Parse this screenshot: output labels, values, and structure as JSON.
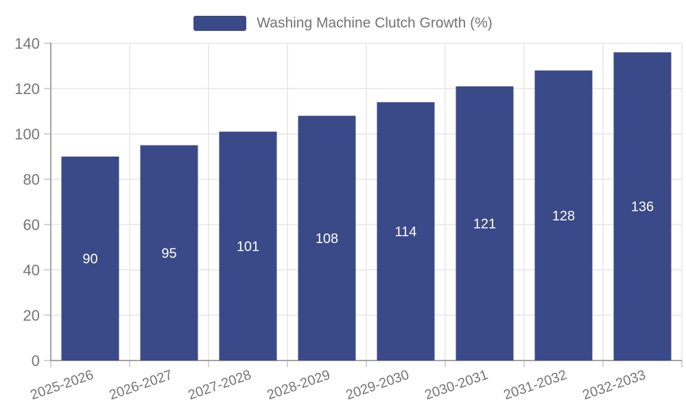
{
  "legend": {
    "label": "Washing Machine Clutch Growth (%)"
  },
  "colors": {
    "bar": "#3A4A88",
    "axis": "#A3A3A3",
    "tick": "#C4C4C4",
    "grid": "#E5E5E5",
    "tick_text": "#757575",
    "legend_text": "#737373",
    "bar_label": "#FFFFFF"
  },
  "chart_data": {
    "type": "bar",
    "title": "",
    "categories": [
      "2025-2026",
      "2026-2027",
      "2027-2028",
      "2028-2029",
      "2029-2030",
      "2030-2031",
      "2031-2032",
      "2032-2033"
    ],
    "values": [
      90,
      95,
      101,
      108,
      114,
      121,
      128,
      136
    ],
    "series": [
      {
        "name": "Washing Machine Clutch Growth (%)",
        "values": [
          90,
          95,
          101,
          108,
          114,
          121,
          128,
          136
        ]
      }
    ],
    "xlabel": "",
    "ylabel": "",
    "ylim": [
      0,
      140
    ],
    "yticks": [
      0,
      20,
      40,
      60,
      80,
      100,
      120,
      140
    ],
    "grid": true,
    "legend_position": "top-center",
    "bar_label_position": "inside-center",
    "xtick_rotation_deg": -19
  }
}
